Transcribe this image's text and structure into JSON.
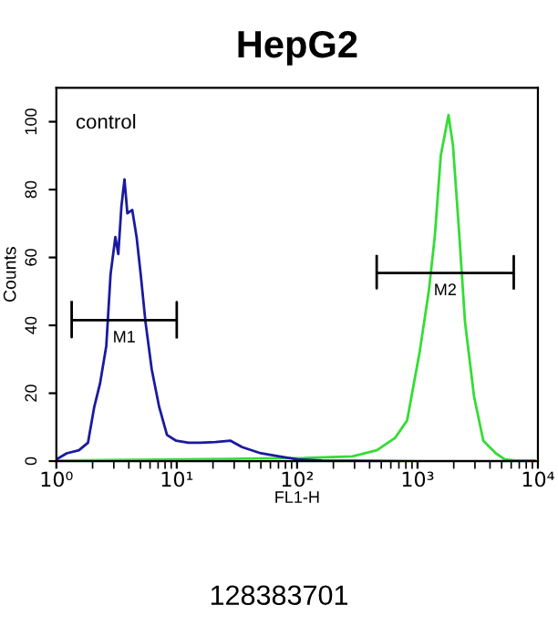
{
  "chart_data": {
    "type": "line",
    "title": "HepG2",
    "xlabel": "FL1-H",
    "ylabel": "Counts",
    "log": "x",
    "xlim": [
      1,
      10000
    ],
    "xticks": [
      {
        "value": 1,
        "label": "10⁰"
      },
      {
        "value": 10,
        "label": "10¹"
      },
      {
        "value": 100,
        "label": "10²"
      },
      {
        "value": 1000,
        "label": "10³"
      },
      {
        "value": 10000,
        "label": "10⁴"
      }
    ],
    "ylim": [
      0,
      110
    ],
    "yticks": [
      0,
      20,
      40,
      60,
      80,
      100
    ],
    "grid": false,
    "legend": false,
    "marker": "none",
    "line_style": "solid",
    "annotations": [
      "control",
      "128383701"
    ],
    "series": [
      {
        "color": "#33dd33",
        "x": [
          1,
          35,
          114,
          288,
          459,
          650,
          820,
          1040,
          1240,
          1390,
          1560,
          1810,
          1970,
          2210,
          2480,
          2950,
          3520,
          4470,
          5300,
          6610,
          9400
        ],
        "values": [
          0.2,
          0.7,
          0.9,
          1.4,
          3.2,
          6.8,
          12,
          32,
          50,
          66,
          90,
          102,
          93,
          68,
          41,
          19,
          6,
          2.3,
          0.5,
          0.2,
          0.2
        ]
      },
      {
        "color": "#1a1aa0",
        "x": [
          1,
          1.22,
          1.54,
          1.83,
          2.06,
          2.31,
          2.6,
          2.82,
          3.09,
          3.27,
          3.47,
          3.68,
          3.89,
          4.27,
          4.64,
          5.02,
          5.5,
          6.2,
          7.14,
          8.3,
          9.9,
          12.5,
          15.7,
          21,
          28,
          35,
          50,
          71,
          100,
          160,
          1000,
          9400
        ],
        "values": [
          0.5,
          2.3,
          3.2,
          5.4,
          15.8,
          23,
          34,
          55,
          66,
          61,
          75,
          83,
          73,
          74,
          66,
          55,
          41,
          27,
          16,
          7.7,
          6,
          5.4,
          5.4,
          5.6,
          6,
          4.1,
          2.3,
          1.4,
          0.5,
          0.2,
          0,
          0
        ]
      },
      {
        "name": "M1",
        "color": "#000000",
        "x": [
          1.34,
          1.34,
          1.34,
          10,
          10,
          10
        ],
        "values": [
          46.8,
          36.5,
          41.5,
          41.5,
          46.8,
          36.5
        ]
      },
      {
        "name": "M2",
        "color": "#000000",
        "x": [
          458,
          458,
          458,
          6300,
          6300,
          6300
        ],
        "values": [
          60.4,
          50.9,
          55.4,
          55.4,
          60.4,
          50.9
        ]
      }
    ]
  }
}
